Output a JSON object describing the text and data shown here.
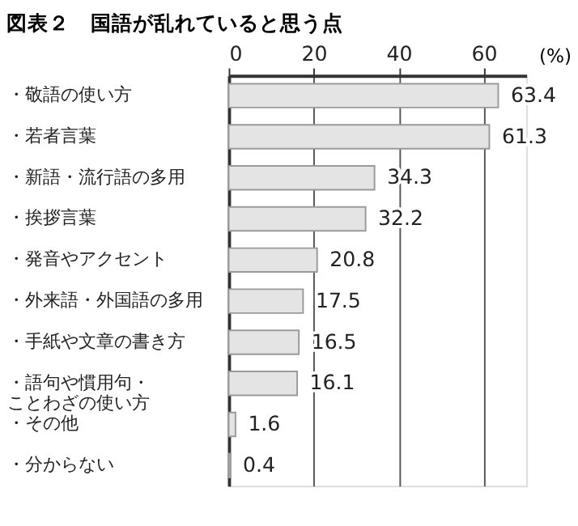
{
  "chart_data": {
    "type": "bar",
    "orientation": "horizontal",
    "title": "図表２　国語が乱れていると思う点",
    "xlabel": "(%)",
    "categories": [
      "・敬語の使い方",
      "・若者言葉",
      "・新語・流行語の多用",
      "・挨拶言葉",
      "・発音やアクセント",
      "・外来語・外国語の多用",
      "・手紙や文章の書き方",
      "・語句や慣用句・ことわざの使い方",
      "・その他",
      "・分からない"
    ],
    "values": [
      63.4,
      61.3,
      34.3,
      32.2,
      20.8,
      17.5,
      16.5,
      16.1,
      1.6,
      0.4
    ],
    "color": "#e4e4e4",
    "xlim": [
      0,
      70
    ],
    "xticks": [
      0,
      20,
      40,
      60
    ],
    "grid": "x",
    "data_labels": true
  }
}
